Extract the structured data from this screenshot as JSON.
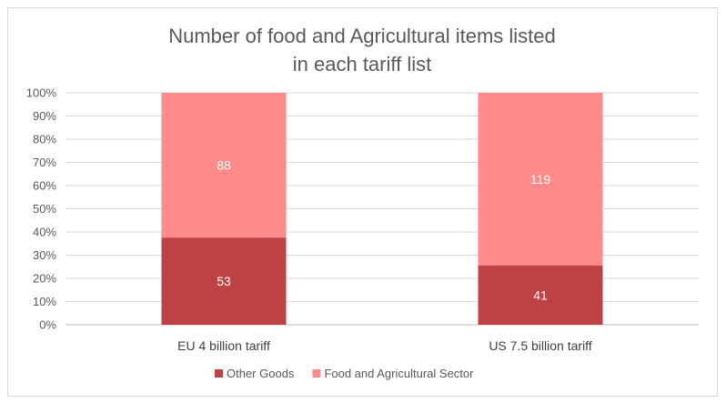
{
  "chart_data": {
    "type": "bar",
    "stacked": "percent",
    "title": "Number of food and Agricultural items listed in each tariff list",
    "title_lines": [
      "Number of food and Agricultural items listed",
      "in each tariff list"
    ],
    "categories": [
      "EU 4 billion tariff",
      "US 7.5 billion tariff"
    ],
    "series": [
      {
        "name": "Other Goods",
        "values": [
          53,
          41
        ],
        "color": "#be4144"
      },
      {
        "name": "Food and Agricultural Sector",
        "values": [
          88,
          119
        ],
        "color": "#ff8a8a"
      }
    ],
    "ylim": [
      0,
      100
    ],
    "yticks": [
      "0%",
      "10%",
      "20%",
      "30%",
      "40%",
      "50%",
      "60%",
      "70%",
      "80%",
      "90%",
      "100%"
    ],
    "grid": true,
    "legend": "bottom",
    "xlabel": "",
    "ylabel": ""
  }
}
